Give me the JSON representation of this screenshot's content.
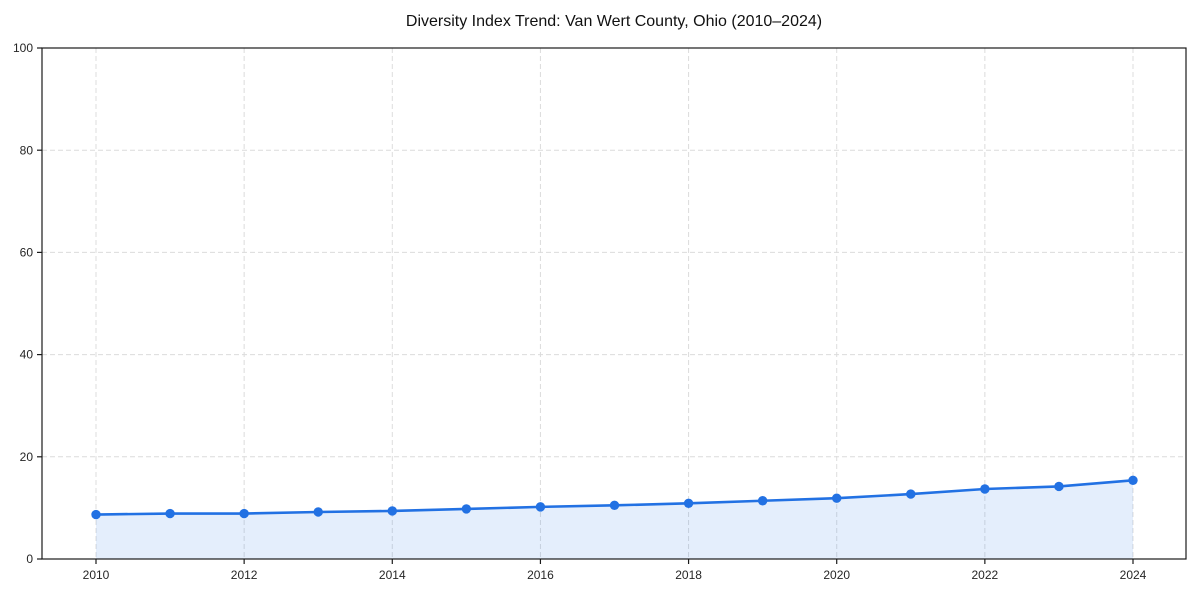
{
  "page": {
    "background": "#ffffff"
  },
  "chart_data": {
    "type": "line",
    "title": "Diversity Index Trend: Van Wert County, Ohio (2010–2024)",
    "x": [
      2010,
      2011,
      2012,
      2013,
      2014,
      2015,
      2016,
      2017,
      2018,
      2019,
      2020,
      2021,
      2022,
      2023,
      2024
    ],
    "series": [
      {
        "name": "Diversity Index",
        "values": [
          8.7,
          8.9,
          8.9,
          9.2,
          9.4,
          9.8,
          10.2,
          10.5,
          10.9,
          11.4,
          11.9,
          12.7,
          13.7,
          14.2,
          15.4
        ]
      }
    ],
    "xlabel": "",
    "ylabel": "",
    "xlim": [
      2009.3,
      2024.7
    ],
    "ylim": [
      0,
      100
    ],
    "x_ticks": [
      2010,
      2012,
      2014,
      2016,
      2018,
      2020,
      2022,
      2024
    ],
    "y_ticks": [
      0,
      20,
      40,
      60,
      80,
      100
    ],
    "grid": "dashed",
    "legend_position": "none",
    "area_fill": true,
    "marker": "circle",
    "style": {
      "line_color": "#2271e3",
      "marker_color": "#2271e3",
      "area_fill_color": "#2271e3",
      "area_fill_opacity": 0.12,
      "grid_color": "#dcdcdc",
      "axis_color": "#1a1a1a",
      "tick_label_color": "#262626",
      "title_color": "#111111",
      "background": "#ffffff"
    }
  }
}
